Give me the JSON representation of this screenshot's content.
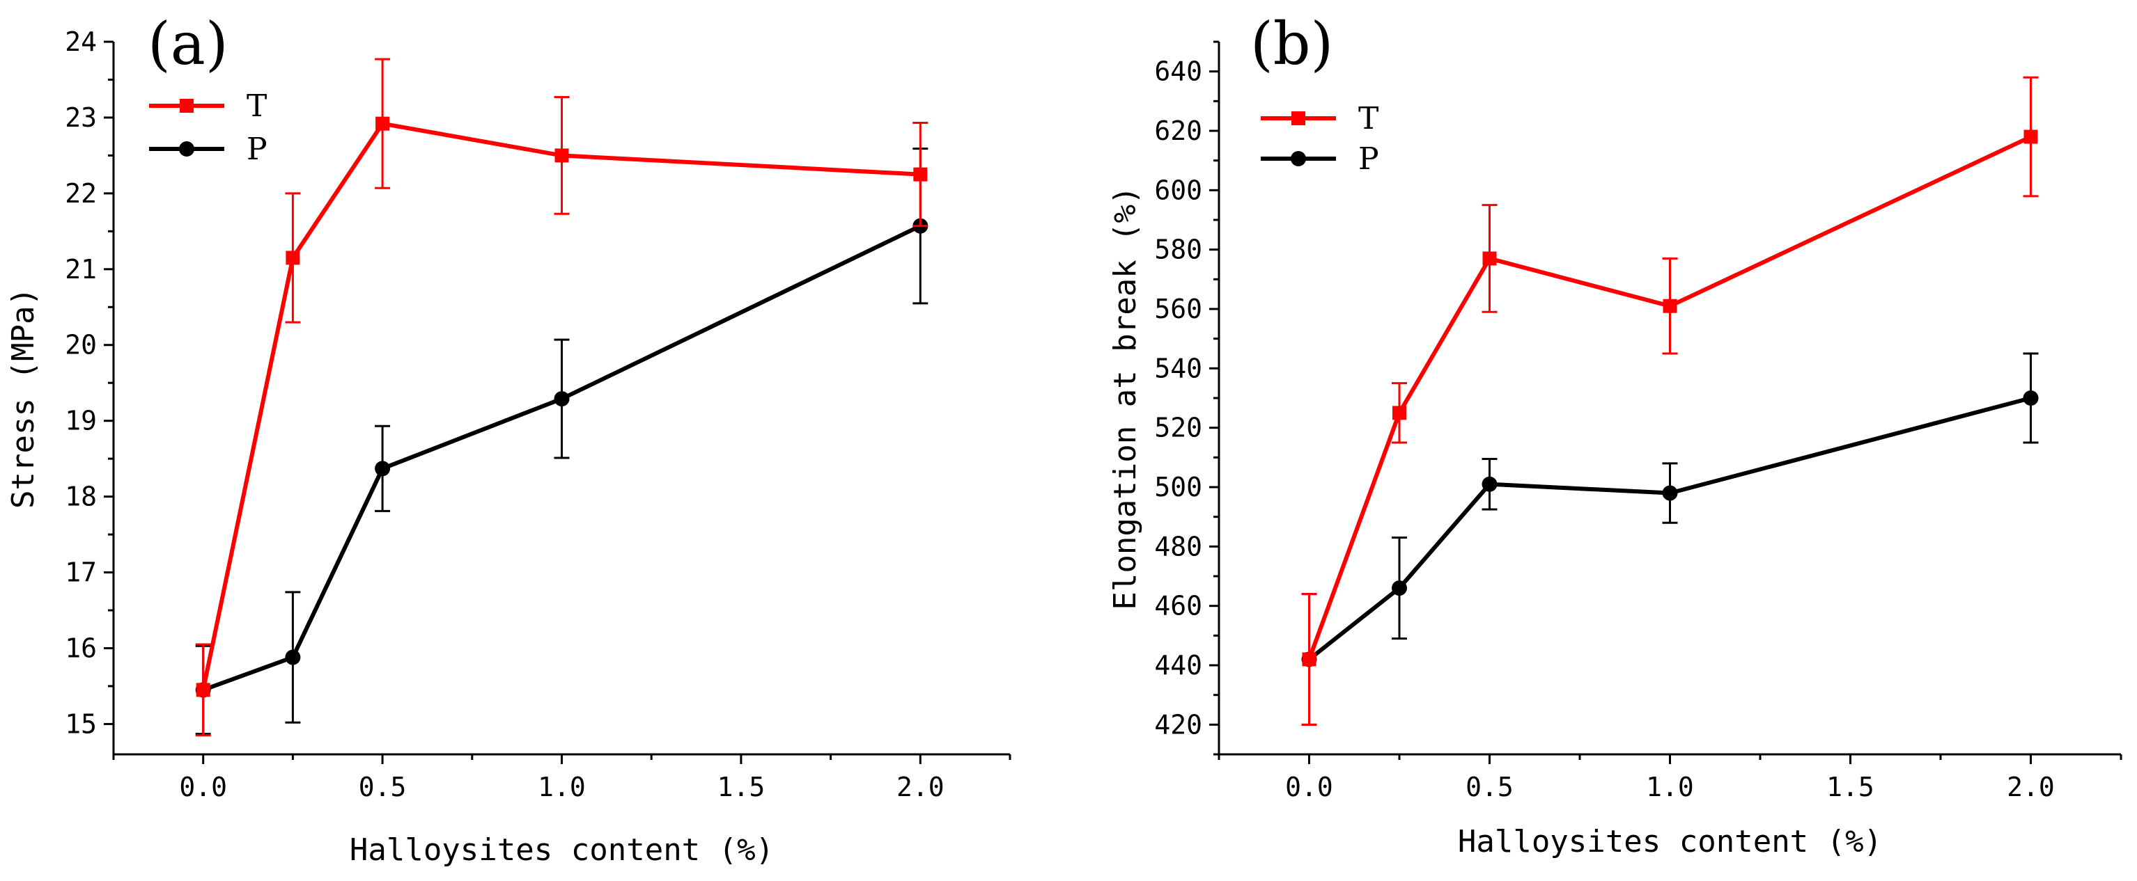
{
  "chart_data": [
    {
      "type": "line",
      "panel_label": "(a)",
      "xlabel": "Halloysites content (%)",
      "ylabel": "Stress (MPa)",
      "xlim": [
        -0.25,
        2.25
      ],
      "ylim": [
        14.6,
        24.0
      ],
      "xticks": [
        0.0,
        0.5,
        1.0,
        1.5,
        2.0
      ],
      "xtick_labels": [
        "0.0",
        "0.5",
        "1.0",
        "1.5",
        "2.0"
      ],
      "yticks": [
        15,
        16,
        17,
        18,
        19,
        20,
        21,
        22,
        23,
        24
      ],
      "ytick_labels": [
        "15",
        "16",
        "17",
        "18",
        "19",
        "20",
        "21",
        "22",
        "23",
        "24"
      ],
      "legend_position": "top-left",
      "series": [
        {
          "name": "T",
          "color": "#ff0000",
          "marker": "square",
          "x": [
            0.0,
            0.25,
            0.5,
            1.0,
            2.0
          ],
          "values": [
            15.45,
            21.15,
            22.92,
            22.5,
            22.25
          ],
          "errors": [
            0.6,
            0.85,
            0.85,
            0.77,
            0.68
          ]
        },
        {
          "name": "P",
          "color": "#000000",
          "marker": "circle",
          "x": [
            0.0,
            0.25,
            0.5,
            1.0,
            2.0
          ],
          "values": [
            15.45,
            15.88,
            18.37,
            19.29,
            21.57
          ],
          "errors": [
            0.58,
            0.86,
            0.56,
            0.78,
            1.02
          ]
        }
      ]
    },
    {
      "type": "line",
      "panel_label": "(b)",
      "xlabel": "Halloysites content (%)",
      "ylabel": "Elongation at break (%)",
      "xlim": [
        -0.25,
        2.25
      ],
      "ylim": [
        410,
        650
      ],
      "xticks": [
        0.0,
        0.5,
        1.0,
        1.5,
        2.0
      ],
      "xtick_labels": [
        "0.0",
        "0.5",
        "1.0",
        "1.5",
        "2.0"
      ],
      "yticks": [
        420,
        440,
        460,
        480,
        500,
        520,
        540,
        560,
        580,
        600,
        620,
        640
      ],
      "ytick_labels": [
        "420",
        "440",
        "460",
        "480",
        "500",
        "520",
        "540",
        "560",
        "580",
        "600",
        "620",
        "640"
      ],
      "legend_position": "top-left",
      "series": [
        {
          "name": "T",
          "color": "#ff0000",
          "marker": "square",
          "x": [
            0.0,
            0.25,
            0.5,
            1.0,
            2.0
          ],
          "values": [
            442,
            525,
            577,
            561,
            618
          ],
          "errors": [
            22,
            10,
            18,
            16,
            20
          ]
        },
        {
          "name": "P",
          "color": "#000000",
          "marker": "circle",
          "x": [
            0.0,
            0.25,
            0.5,
            1.0,
            2.0
          ],
          "values": [
            442,
            466,
            501,
            498,
            530
          ],
          "errors": [
            22,
            17,
            8.5,
            10,
            15
          ]
        }
      ]
    }
  ]
}
